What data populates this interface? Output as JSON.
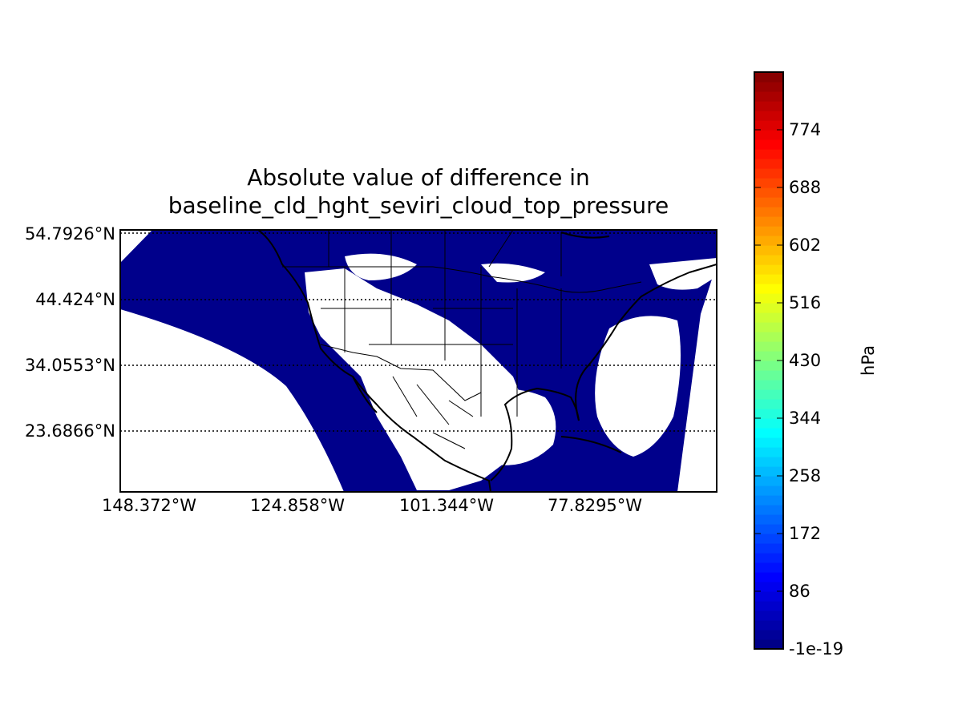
{
  "title": {
    "line1": "Absolute value of difference in",
    "line2": "baseline_cld_hght_seviri_cloud_top_pressure"
  },
  "map": {
    "parallel_labels": [
      "54.7926°N",
      "44.424°N",
      "34.0553°N",
      "23.6866°N"
    ],
    "meridian_labels": [
      "148.372°W",
      "124.858°W",
      "101.344°W",
      "77.8295°W"
    ],
    "fill_color": "#00008b",
    "land_color": "#ffffff",
    "line_color": "#000000"
  },
  "colorbar": {
    "label": "hPa",
    "ticks": [
      "-1e-19",
      "86",
      "172",
      "258",
      "344",
      "430",
      "516",
      "602",
      "688",
      "774"
    ],
    "colormap": "jet",
    "range": [
      -1e-19,
      860
    ]
  }
}
